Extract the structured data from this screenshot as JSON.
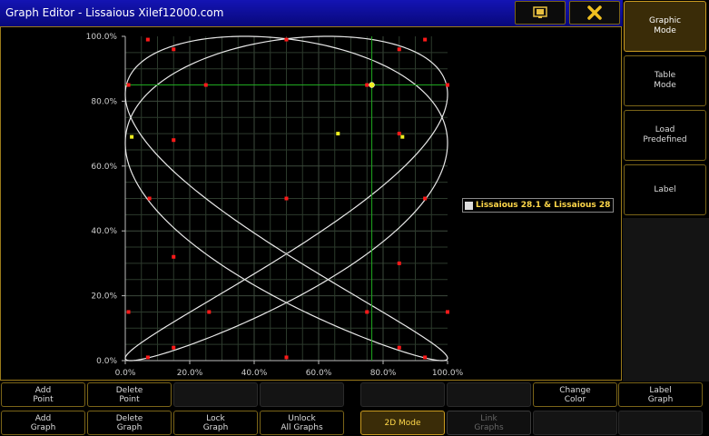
{
  "window": {
    "title": "Graph Editor - Lissaious Xilef12000.com"
  },
  "titlebar": {
    "icons": [
      "screen-icon",
      "close-icon"
    ]
  },
  "sidebar": {
    "items": [
      {
        "label": "Graphic\nMode",
        "active": true
      },
      {
        "label": "Table\nMode",
        "active": false
      },
      {
        "label": "Load\nPredefined",
        "active": false
      },
      {
        "label": "Label",
        "active": false
      }
    ]
  },
  "legend": {
    "label": "Lissaious 28.1 & Lissaious 28"
  },
  "toolbar": {
    "row1": [
      {
        "label": "Add\nPoint",
        "state": "normal"
      },
      {
        "label": "Delete\nPoint",
        "state": "normal"
      },
      {
        "label": "",
        "state": "empty"
      },
      {
        "label": "",
        "state": "empty"
      },
      {
        "label": "",
        "state": "empty"
      },
      {
        "label": "",
        "state": "empty"
      },
      {
        "label": "Change\nColor",
        "state": "normal"
      },
      {
        "label": "Label\nGraph",
        "state": "normal"
      }
    ],
    "row2": [
      {
        "label": "Add\nGraph",
        "state": "normal"
      },
      {
        "label": "Delete\nGraph",
        "state": "normal"
      },
      {
        "label": "Lock\nGraph",
        "state": "normal"
      },
      {
        "label": "Unlock\nAll Graphs",
        "state": "normal"
      },
      {
        "label": "2D Mode",
        "state": "active"
      },
      {
        "label": "Link\nGraphs",
        "state": "disabled"
      },
      {
        "label": "",
        "state": "empty"
      },
      {
        "label": "",
        "state": "empty"
      }
    ]
  },
  "chart_data": {
    "type": "scatter",
    "xlim": [
      0,
      100
    ],
    "ylim": [
      0,
      100
    ],
    "x_ticks": [
      "0.0%",
      "20.0%",
      "40.0%",
      "60.0%",
      "80.0%",
      "100.0%"
    ],
    "y_ticks": [
      "100.0%",
      "80.0%",
      "60.0%",
      "40.0%",
      "20.0%",
      "0.0%"
    ],
    "grid": true,
    "curve": {
      "type": "lissajous",
      "freq_x": 3,
      "freq_y": 2,
      "phase": 0.5236,
      "color": "#e8e8e8"
    },
    "points_red": [
      [
        1,
        85
      ],
      [
        1,
        15
      ],
      [
        7,
        99
      ],
      [
        7,
        1
      ],
      [
        7.5,
        50
      ],
      [
        15,
        96
      ],
      [
        15,
        68
      ],
      [
        15,
        32
      ],
      [
        15,
        4
      ],
      [
        25,
        85
      ],
      [
        26,
        15
      ],
      [
        50,
        99
      ],
      [
        50,
        50
      ],
      [
        50,
        1
      ],
      [
        75,
        85
      ],
      [
        75,
        15
      ],
      [
        85,
        96
      ],
      [
        85,
        70
      ],
      [
        85,
        30
      ],
      [
        85,
        4
      ],
      [
        93,
        99
      ],
      [
        93,
        1
      ],
      [
        93,
        50
      ],
      [
        100,
        85
      ],
      [
        100,
        15
      ]
    ],
    "points_yellow": [
      [
        2,
        69
      ],
      [
        66,
        70
      ],
      [
        86,
        69
      ]
    ],
    "selected_point": [
      76.5,
      85
    ],
    "crosshair": {
      "x": 76.5,
      "y": 85,
      "color": "#1fa81f"
    },
    "colors": {
      "point": "#ff1a1a",
      "yellow": "#f0f020",
      "grid": "#2c3a2c",
      "axis": "#bbbbbb"
    }
  }
}
